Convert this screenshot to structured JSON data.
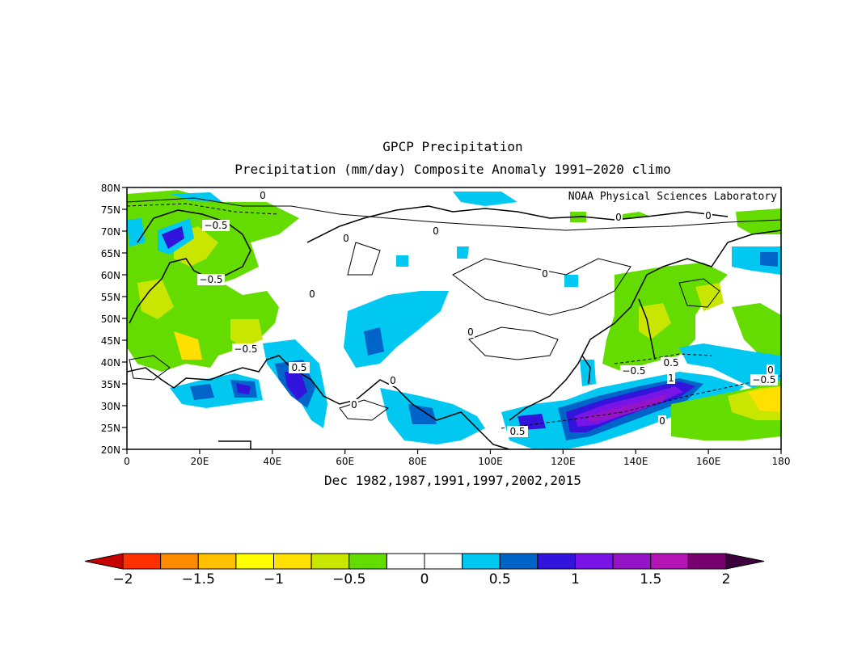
{
  "title": "GPCP Precipitation",
  "subtitle": "Precipitation (mm/day) Composite Anomaly 1991−2020 climo",
  "credit": "NOAA Physical Sciences Laboratory",
  "footer": "Dec 1982,1987,1991,1997,2002,2015",
  "map": {
    "lat_labels": [
      "80N",
      "75N",
      "70N",
      "65N",
      "60N",
      "55N",
      "50N",
      "45N",
      "40N",
      "35N",
      "30N",
      "25N",
      "20N"
    ],
    "lon_labels": [
      "0",
      "20E",
      "40E",
      "60E",
      "80E",
      "100E",
      "120E",
      "140E",
      "160E",
      "180"
    ],
    "contour_labels": [
      "0",
      "0",
      "0",
      "0",
      "0",
      "0",
      "0",
      "0",
      "0",
      "0",
      "0",
      "0",
      "−0.5",
      "−0.5",
      "−0.5",
      "−0.5",
      "−0.5",
      "0.5",
      "0.5",
      "0.5",
      "1"
    ],
    "region": {
      "lon": [
        0,
        180
      ],
      "lat": [
        20,
        80
      ]
    }
  },
  "colorbar": {
    "labels": [
      "−2",
      "−1.5",
      "−1",
      "−0.5",
      "0",
      "0.5",
      "1",
      "1.5",
      "2"
    ],
    "colors": [
      "#c80000",
      "#ff3000",
      "#ff8c00",
      "#ffc000",
      "#ffff00",
      "#ffe000",
      "#c8e600",
      "#64dc00",
      "#ffffff",
      "#ffffff",
      "#00c8f0",
      "#0064c8",
      "#3214dc",
      "#7814e6",
      "#9614c8",
      "#b414b4",
      "#78006e",
      "#3c003c"
    ]
  }
}
